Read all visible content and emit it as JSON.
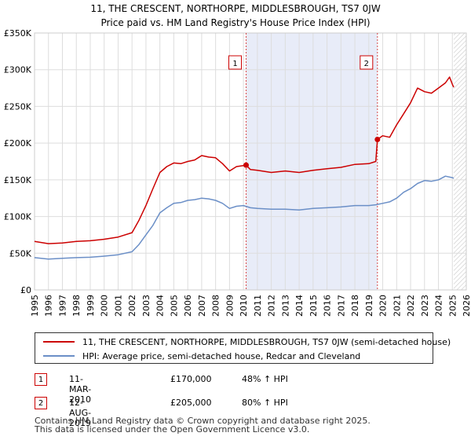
{
  "chart_data": {
    "type": "line",
    "title": "11, THE CRESCENT, NORTHORPE, MIDDLESBROUGH, TS7 0JW",
    "subtitle": "Price paid vs. HM Land Registry's House Price Index (HPI)",
    "xlabel": "",
    "ylabel": "",
    "xlim": [
      1995,
      2026
    ],
    "ylim": [
      0,
      350000
    ],
    "x_ticks": [
      1995,
      1996,
      1997,
      1998,
      1999,
      2000,
      2001,
      2002,
      2003,
      2004,
      2005,
      2006,
      2007,
      2008,
      2009,
      2010,
      2011,
      2012,
      2013,
      2014,
      2015,
      2016,
      2017,
      2018,
      2019,
      2020,
      2021,
      2022,
      2023,
      2024,
      2025,
      2026
    ],
    "y_ticks": [
      0,
      50000,
      100000,
      150000,
      200000,
      250000,
      300000,
      350000
    ],
    "y_tick_labels": [
      "£0",
      "£50K",
      "£100K",
      "£150K",
      "£200K",
      "£250K",
      "£300K",
      "£350K"
    ],
    "grid": true,
    "shaded_span": {
      "start": 2010.19,
      "end": 2019.62,
      "color": "#e8ecf8"
    },
    "hatched_after": 2025.1,
    "series": [
      {
        "name": "11, THE CRESCENT, NORTHORPE, MIDDLESBROUGH, TS7 0JW (semi-detached house)",
        "color": "#cc0000",
        "x": [
          1995,
          1996,
          1997,
          1998,
          1999,
          2000,
          2001,
          2002,
          2002.5,
          2003,
          2003.5,
          2004,
          2004.5,
          2005,
          2005.5,
          2006,
          2006.5,
          2007,
          2007.5,
          2008,
          2008.5,
          2009,
          2009.5,
          2010.19,
          2010.5,
          2011,
          2012,
          2013,
          2014,
          2015,
          2016,
          2017,
          2018,
          2019,
          2019.5,
          2019.62,
          2020,
          2020.5,
          2021,
          2021.5,
          2022,
          2022.5,
          2023,
          2023.5,
          2024,
          2024.5,
          2024.8,
          2025,
          2025.1
        ],
        "y": [
          66000,
          63000,
          64000,
          66000,
          67000,
          69000,
          72000,
          78000,
          95000,
          115000,
          138000,
          160000,
          168000,
          173000,
          172000,
          175000,
          177000,
          183000,
          181000,
          180000,
          172000,
          162000,
          168000,
          170000,
          164000,
          163000,
          160000,
          162000,
          160000,
          163000,
          165000,
          167000,
          171000,
          172000,
          175000,
          205000,
          210000,
          208000,
          225000,
          240000,
          255000,
          275000,
          270000,
          268000,
          275000,
          282000,
          290000,
          280000,
          276000
        ]
      },
      {
        "name": "HPI: Average price, semi-detached house, Redcar and Cleveland",
        "color": "#6b8fc7",
        "x": [
          1995,
          1996,
          1997,
          1998,
          1999,
          2000,
          2001,
          2002,
          2002.5,
          2003,
          2003.5,
          2004,
          2004.5,
          2005,
          2005.5,
          2006,
          2006.5,
          2007,
          2007.5,
          2008,
          2008.5,
          2009,
          2009.5,
          2010,
          2010.5,
          2011,
          2012,
          2013,
          2014,
          2015,
          2016,
          2017,
          2018,
          2019,
          2019.5,
          2020,
          2020.5,
          2021,
          2021.5,
          2022,
          2022.5,
          2023,
          2023.5,
          2024,
          2024.5,
          2025,
          2025.1
        ],
        "y": [
          44000,
          42000,
          43000,
          44000,
          44500,
          46000,
          48000,
          52000,
          62000,
          75000,
          88000,
          105000,
          112000,
          118000,
          119000,
          122000,
          123000,
          125000,
          124000,
          122000,
          118000,
          111000,
          114000,
          115000,
          112000,
          111000,
          110000,
          110000,
          109000,
          111000,
          112000,
          113000,
          115000,
          115000,
          116000,
          118000,
          120000,
          125000,
          133000,
          138000,
          145000,
          149000,
          148000,
          150000,
          155000,
          153000,
          152000
        ]
      }
    ],
    "annotations": [
      {
        "label": "1",
        "x": 2010.19,
        "y": 170000
      },
      {
        "label": "2",
        "x": 2019.62,
        "y": 205000
      }
    ]
  },
  "legend": {
    "items": [
      {
        "label": "11, THE CRESCENT, NORTHORPE, MIDDLESBROUGH, TS7 0JW (semi-detached house)",
        "color": "#cc0000"
      },
      {
        "label": "HPI: Average price, semi-detached house, Redcar and Cleveland",
        "color": "#6b8fc7"
      }
    ]
  },
  "transactions": [
    {
      "num": "1",
      "date": "11-MAR-2010",
      "price": "£170,000",
      "hpi": "48% ↑ HPI"
    },
    {
      "num": "2",
      "date": "12-AUG-2019",
      "price": "£205,000",
      "hpi": "80% ↑ HPI"
    }
  ],
  "footer": {
    "line1": "Contains HM Land Registry data © Crown copyright and database right 2025.",
    "line2": "This data is licensed under the Open Government Licence v3.0."
  }
}
